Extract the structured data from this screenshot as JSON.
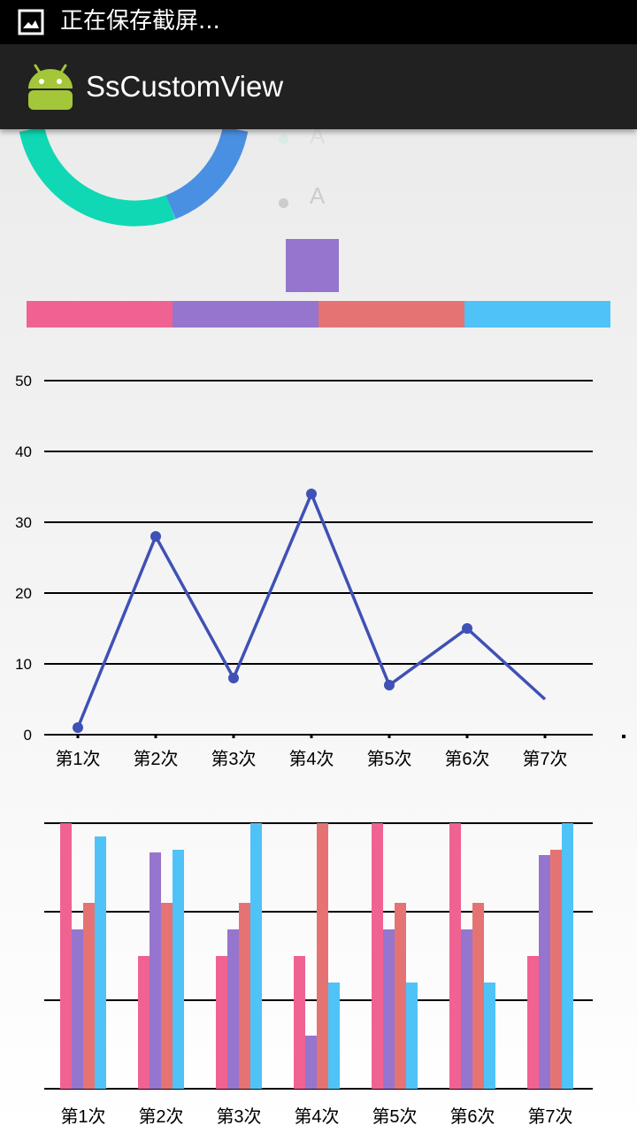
{
  "status_bar": {
    "text": "正在保存截屏..."
  },
  "app_bar": {
    "title": "SsCustomView"
  },
  "legend": {
    "items": [
      {
        "label": "A"
      },
      {
        "label": "A"
      }
    ]
  },
  "colors": {
    "pink": "#f06292",
    "purple": "#9575cd",
    "salmon": "#e57373",
    "blue": "#4fc3f7",
    "teal": "#10d8b4",
    "ring_blue": "#4a90e2",
    "line": "#3f51b5"
  },
  "color_strip": [
    "#f06292",
    "#9575cd",
    "#e57373",
    "#4fc3f7"
  ],
  "chart_data": [
    {
      "type": "line",
      "categories": [
        "第1次",
        "第2次",
        "第3次",
        "第4次",
        "第5次",
        "第6次",
        "第7次"
      ],
      "series": [
        {
          "values": [
            1,
            28,
            8,
            34,
            7,
            15,
            5
          ]
        }
      ],
      "y_ticks": [
        "0",
        "10",
        "20",
        "30",
        "40",
        "50"
      ],
      "ylim": [
        0,
        50
      ],
      "grid": true
    },
    {
      "type": "bar",
      "categories": [
        "第1次",
        "第2次",
        "第3次",
        "第4次",
        "第5次",
        "第6次",
        "第7次"
      ],
      "series": [
        {
          "values": [
            100,
            50,
            50,
            50,
            100,
            100,
            50
          ]
        },
        {
          "values": [
            60,
            89,
            60,
            20,
            60,
            60,
            88
          ]
        },
        {
          "values": [
            70,
            70,
            70,
            100,
            70,
            70,
            90
          ]
        },
        {
          "values": [
            95,
            90,
            100,
            40,
            40,
            40,
            100
          ]
        }
      ],
      "ylim": [
        0,
        100
      ],
      "grid": true
    }
  ]
}
